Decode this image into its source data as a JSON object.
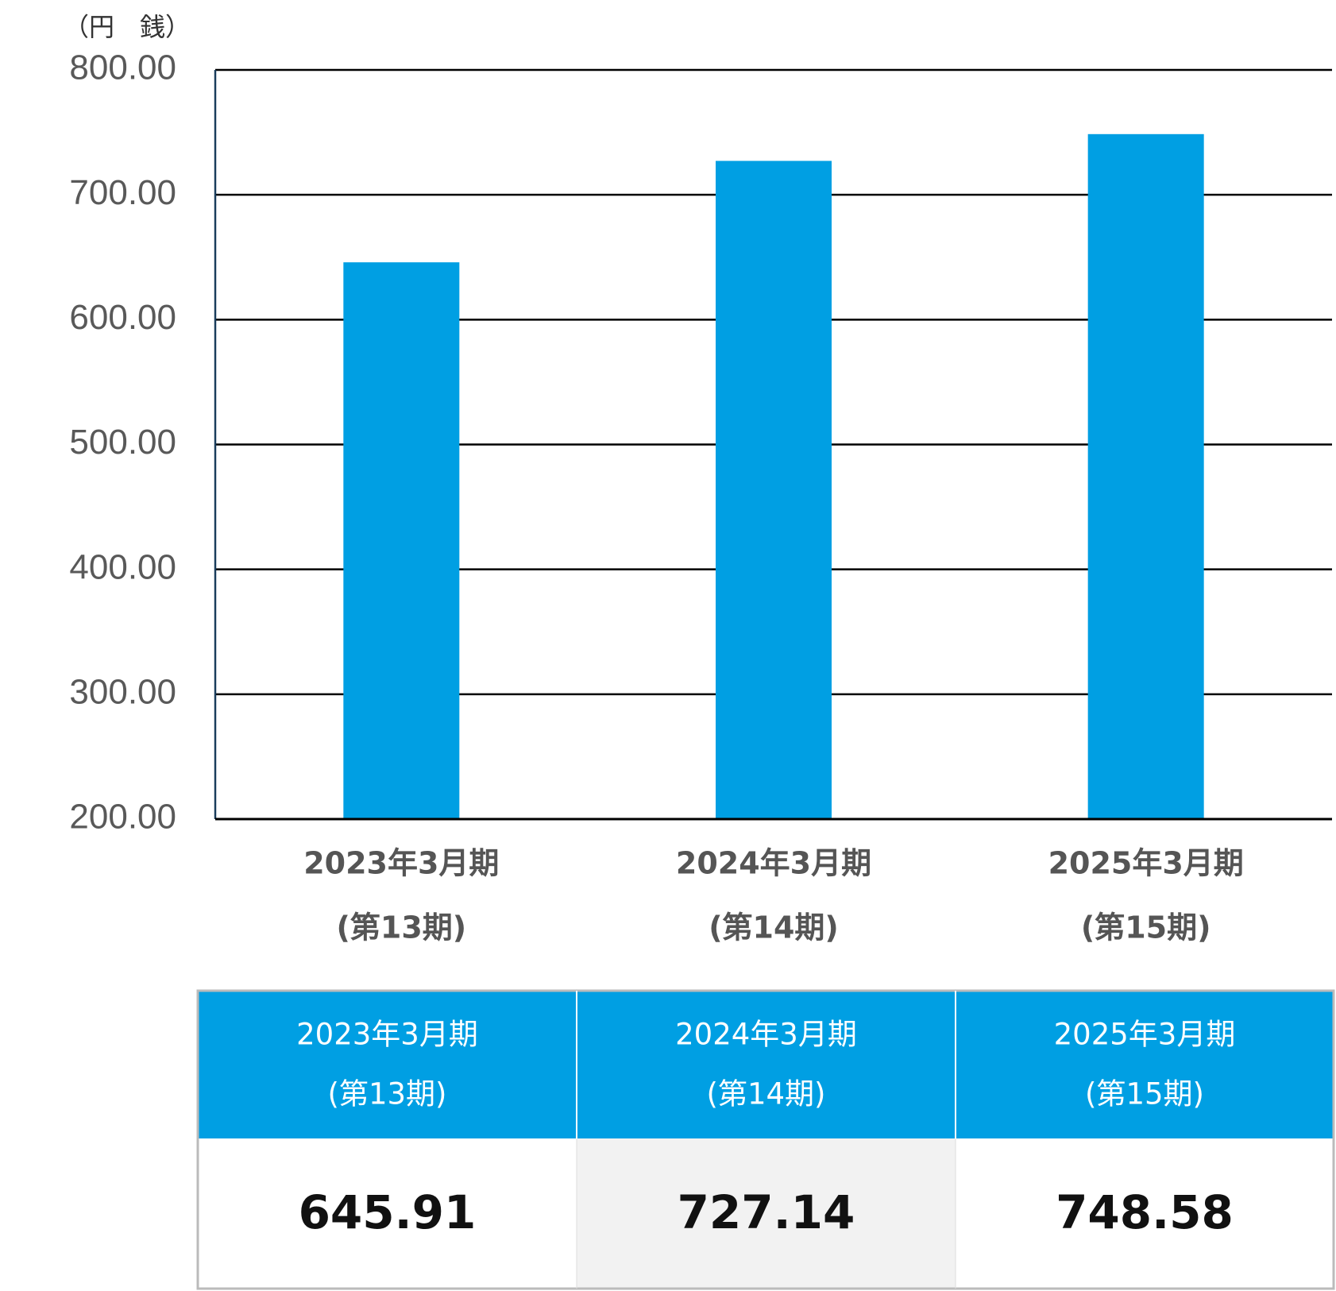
{
  "chart_data": {
    "type": "bar",
    "unit_label": "（円　銭）",
    "categories": [
      [
        "2023年3月期",
        "(第13期)"
      ],
      [
        "2024年3月期",
        "(第14期)"
      ],
      [
        "2025年3月期",
        "(第15期)"
      ]
    ],
    "values": [
      645.91,
      727.14,
      748.58
    ],
    "color": "#009fe3",
    "ylim": [
      200,
      800
    ],
    "yticks": [
      {
        "value": 200,
        "label": "200.00"
      },
      {
        "value": 300,
        "label": "300.00"
      },
      {
        "value": 400,
        "label": "400.00"
      },
      {
        "value": 500,
        "label": "500.00"
      },
      {
        "value": 600,
        "label": "600.00"
      },
      {
        "value": 700,
        "label": "700.00"
      },
      {
        "value": 800,
        "label": "800.00"
      }
    ],
    "grid": true
  }
}
